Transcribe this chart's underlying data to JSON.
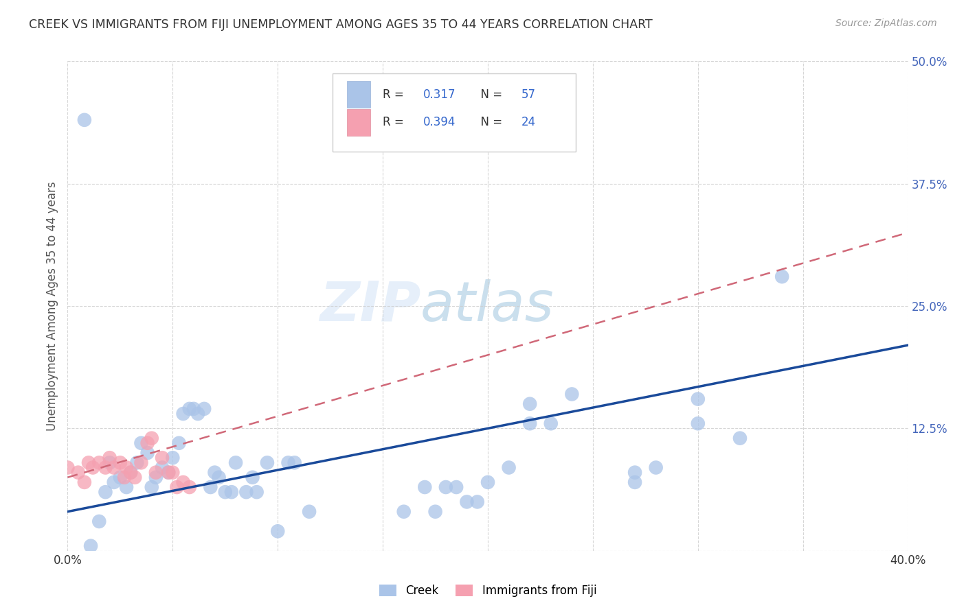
{
  "title": "CREEK VS IMMIGRANTS FROM FIJI UNEMPLOYMENT AMONG AGES 35 TO 44 YEARS CORRELATION CHART",
  "source_text": "Source: ZipAtlas.com",
  "ylabel": "Unemployment Among Ages 35 to 44 years",
  "xlim": [
    0.0,
    0.4
  ],
  "ylim": [
    0.0,
    0.5
  ],
  "xtick_positions": [
    0.0,
    0.05,
    0.1,
    0.15,
    0.2,
    0.25,
    0.3,
    0.35,
    0.4
  ],
  "ytick_positions": [
    0.0,
    0.125,
    0.25,
    0.375,
    0.5
  ],
  "background_color": "#ffffff",
  "grid_color": "#cccccc",
  "watermark_line1": "ZIP",
  "watermark_line2": "atlas",
  "creek_color": "#aac4e8",
  "fiji_color": "#f5a0b0",
  "creek_line_color": "#1a4a9a",
  "fiji_line_color": "#d06878",
  "creek_R": "0.317",
  "creek_N": "57",
  "fiji_R": "0.394",
  "fiji_N": "24",
  "creek_scatter": [
    [
      0.008,
      0.44
    ],
    [
      0.011,
      0.005
    ],
    [
      0.015,
      0.03
    ],
    [
      0.018,
      0.06
    ],
    [
      0.02,
      0.09
    ],
    [
      0.022,
      0.07
    ],
    [
      0.025,
      0.075
    ],
    [
      0.028,
      0.065
    ],
    [
      0.03,
      0.08
    ],
    [
      0.033,
      0.09
    ],
    [
      0.035,
      0.11
    ],
    [
      0.038,
      0.1
    ],
    [
      0.04,
      0.065
    ],
    [
      0.042,
      0.075
    ],
    [
      0.045,
      0.085
    ],
    [
      0.048,
      0.08
    ],
    [
      0.05,
      0.095
    ],
    [
      0.053,
      0.11
    ],
    [
      0.055,
      0.14
    ],
    [
      0.058,
      0.145
    ],
    [
      0.06,
      0.145
    ],
    [
      0.062,
      0.14
    ],
    [
      0.065,
      0.145
    ],
    [
      0.068,
      0.065
    ],
    [
      0.07,
      0.08
    ],
    [
      0.072,
      0.075
    ],
    [
      0.075,
      0.06
    ],
    [
      0.078,
      0.06
    ],
    [
      0.08,
      0.09
    ],
    [
      0.085,
      0.06
    ],
    [
      0.088,
      0.075
    ],
    [
      0.09,
      0.06
    ],
    [
      0.095,
      0.09
    ],
    [
      0.1,
      0.02
    ],
    [
      0.105,
      0.09
    ],
    [
      0.108,
      0.09
    ],
    [
      0.115,
      0.04
    ],
    [
      0.16,
      0.04
    ],
    [
      0.17,
      0.065
    ],
    [
      0.175,
      0.04
    ],
    [
      0.18,
      0.065
    ],
    [
      0.185,
      0.065
    ],
    [
      0.19,
      0.05
    ],
    [
      0.195,
      0.05
    ],
    [
      0.2,
      0.07
    ],
    [
      0.21,
      0.085
    ],
    [
      0.22,
      0.15
    ],
    [
      0.22,
      0.13
    ],
    [
      0.23,
      0.13
    ],
    [
      0.24,
      0.16
    ],
    [
      0.27,
      0.07
    ],
    [
      0.27,
      0.08
    ],
    [
      0.28,
      0.085
    ],
    [
      0.3,
      0.155
    ],
    [
      0.3,
      0.13
    ],
    [
      0.32,
      0.115
    ],
    [
      0.34,
      0.28
    ]
  ],
  "fiji_scatter": [
    [
      0.0,
      0.085
    ],
    [
      0.005,
      0.08
    ],
    [
      0.008,
      0.07
    ],
    [
      0.01,
      0.09
    ],
    [
      0.012,
      0.085
    ],
    [
      0.015,
      0.09
    ],
    [
      0.018,
      0.085
    ],
    [
      0.02,
      0.095
    ],
    [
      0.022,
      0.085
    ],
    [
      0.025,
      0.09
    ],
    [
      0.027,
      0.075
    ],
    [
      0.028,
      0.085
    ],
    [
      0.03,
      0.08
    ],
    [
      0.032,
      0.075
    ],
    [
      0.035,
      0.09
    ],
    [
      0.038,
      0.11
    ],
    [
      0.04,
      0.115
    ],
    [
      0.042,
      0.08
    ],
    [
      0.045,
      0.095
    ],
    [
      0.048,
      0.08
    ],
    [
      0.05,
      0.08
    ],
    [
      0.052,
      0.065
    ],
    [
      0.055,
      0.07
    ],
    [
      0.058,
      0.065
    ]
  ],
  "creek_trendline": [
    [
      0.0,
      0.04
    ],
    [
      0.4,
      0.21
    ]
  ],
  "fiji_trendline": [
    [
      0.0,
      0.075
    ],
    [
      0.4,
      0.325
    ]
  ]
}
